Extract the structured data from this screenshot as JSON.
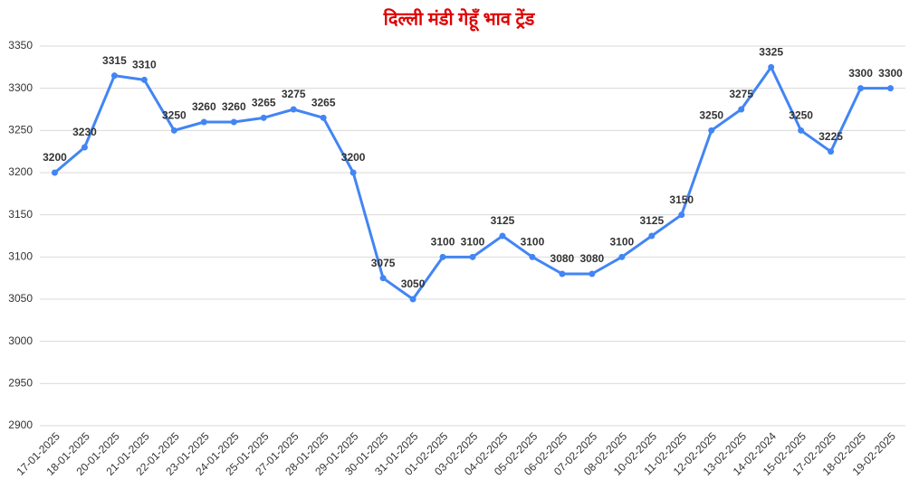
{
  "chart_data": {
    "type": "line",
    "title": "दिल्ली मंडी गेहूँ भाव ट्रेंड",
    "categories": [
      "17-01-2025",
      "18-01-2025",
      "20-01-2025",
      "21-01-2025",
      "22-01-2025",
      "23-01-2025",
      "24-01-2025",
      "25-01-2025",
      "27-01-2025",
      "28-01-2025",
      "29-01-2025",
      "30-01-2025",
      "31-01-2025",
      "01-02-2025",
      "03-02-2025",
      "04-02-2025",
      "05-02-2025",
      "06-02-2025",
      "07-02-2025",
      "08-02-2025",
      "10-02-2025",
      "11-02-2025",
      "12-02-2025",
      "13-02-2025",
      "14-02-2024",
      "15-02-2025",
      "17-02-2025",
      "18-02-2025",
      "19-02-2025"
    ],
    "values": [
      3200,
      3230,
      3315,
      3310,
      3250,
      3260,
      3260,
      3265,
      3275,
      3265,
      3200,
      3075,
      3050,
      3100,
      3100,
      3125,
      3100,
      3080,
      3080,
      3100,
      3125,
      3150,
      3250,
      3275,
      3325,
      3250,
      3225,
      3300,
      3300
    ],
    "color": "#4285f4",
    "ylim": [
      2900,
      3350
    ],
    "yticks": [
      2900,
      2950,
      3000,
      3050,
      3100,
      3150,
      3200,
      3250,
      3300,
      3350
    ],
    "grid": true
  }
}
